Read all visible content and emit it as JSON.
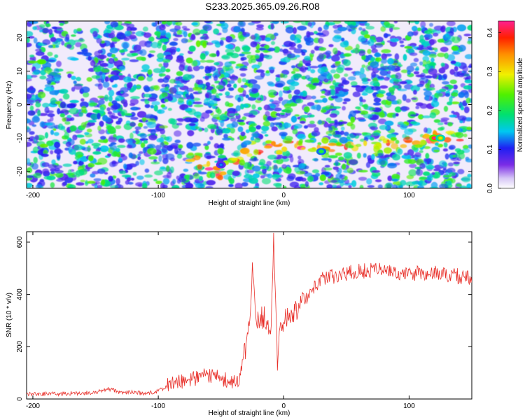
{
  "title": "S233.2025.365.09.26.R08",
  "chart_data": [
    {
      "type": "heatmap",
      "xlabel": "Height of straight line (km)",
      "ylabel": "Frequency (Hz)",
      "xlim": [
        -205,
        150
      ],
      "ylim": [
        -25,
        25
      ],
      "xticks": [
        -200,
        -100,
        0,
        100
      ],
      "yticks": [
        -20,
        -10,
        0,
        10,
        20
      ],
      "colorbar": {
        "label": "Normalized spectral amplitude",
        "range": [
          0.0,
          0.43
        ],
        "ticks": [
          0.0,
          0.1,
          0.2,
          0.3,
          0.4
        ]
      },
      "ridge": {
        "description_points_x": [
          -70,
          -60,
          -50,
          -30,
          0,
          30,
          60,
          90,
          120,
          145
        ],
        "description_points_y": [
          -16,
          -19,
          -21,
          -14,
          -12,
          -13,
          -13,
          -12,
          -10,
          -10
        ]
      },
      "hotspots": [
        {
          "x": 120,
          "y": -10,
          "value": 0.43
        },
        {
          "x": 125,
          "y": -10,
          "value": 0.3
        },
        {
          "x": 30,
          "y": -14,
          "value": 0.22
        },
        {
          "x": -50,
          "y": -18,
          "value": 0.13
        }
      ]
    },
    {
      "type": "line",
      "xlabel": "Height of straight line (km)",
      "ylabel": "SNR (10 * v/v)",
      "xlim": [
        -205,
        150
      ],
      "ylim": [
        0,
        640
      ],
      "xticks": [
        -200,
        -100,
        0,
        100
      ],
      "yticks": [
        0,
        200,
        400,
        600
      ],
      "series": [
        {
          "color": "#e8302a",
          "x": [
            -205,
            -180,
            -150,
            -140,
            -130,
            -120,
            -110,
            -100,
            -90,
            -80,
            -70,
            -60,
            -50,
            -40,
            -35,
            -30,
            -27,
            -25,
            -22,
            -20,
            -15,
            -10,
            -8,
            -5,
            -3,
            0,
            5,
            10,
            15,
            20,
            25,
            30,
            40,
            50,
            60,
            80,
            100,
            120,
            140,
            150
          ],
          "values": [
            20,
            20,
            25,
            40,
            25,
            25,
            20,
            30,
            60,
            70,
            80,
            90,
            80,
            60,
            80,
            200,
            300,
            500,
            280,
            300,
            320,
            250,
            630,
            150,
            280,
            300,
            320,
            340,
            380,
            400,
            430,
            460,
            470,
            480,
            490,
            490,
            480,
            480,
            470,
            460
          ]
        }
      ]
    }
  ]
}
